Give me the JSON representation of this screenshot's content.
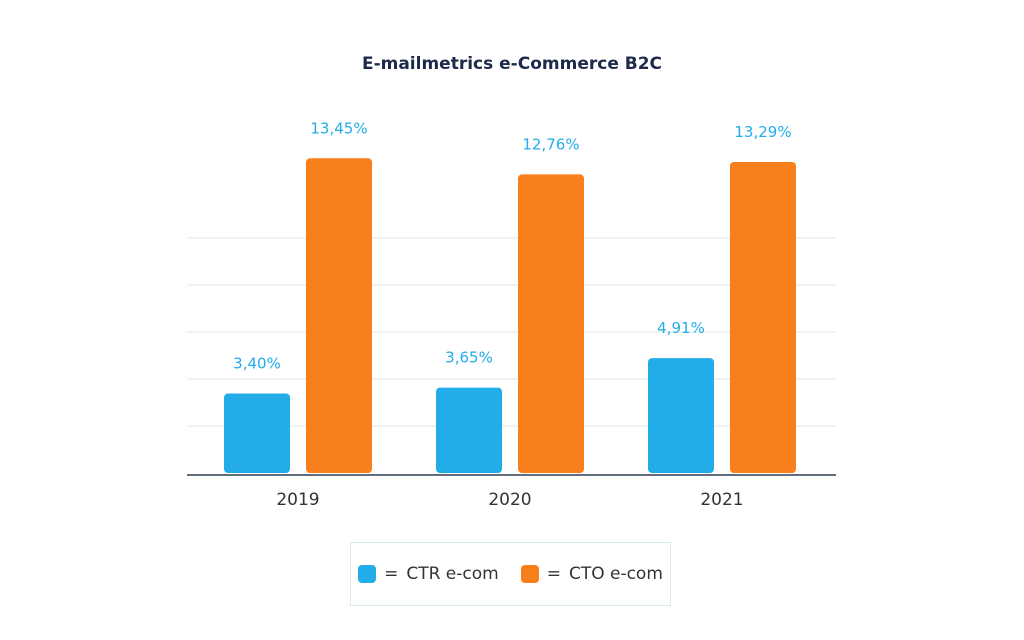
{
  "chart_data": {
    "type": "bar",
    "title": "E-mailmetrics e-Commerce B2C",
    "xlabel": "",
    "ylabel": "",
    "categories": [
      "2019",
      "2020",
      "2021"
    ],
    "series": [
      {
        "name": "CTR e-com",
        "color": "#22ade8",
        "values": [
          3.4,
          3.65,
          4.91
        ],
        "labels": [
          "3,40%",
          "3,65%",
          "4,91%"
        ]
      },
      {
        "name": "CTO e-com",
        "color": "#f97e1c",
        "values": [
          13.45,
          12.76,
          13.29
        ],
        "labels": [
          "13,45%",
          "12,76%",
          "13,29%"
        ]
      }
    ],
    "grid": true,
    "y_axis_labels_visible": false,
    "legend_position": "bottom-center",
    "legend_prefix": "= ",
    "data_label_color": "#22ade8",
    "title_color": "#1e2a4a"
  }
}
